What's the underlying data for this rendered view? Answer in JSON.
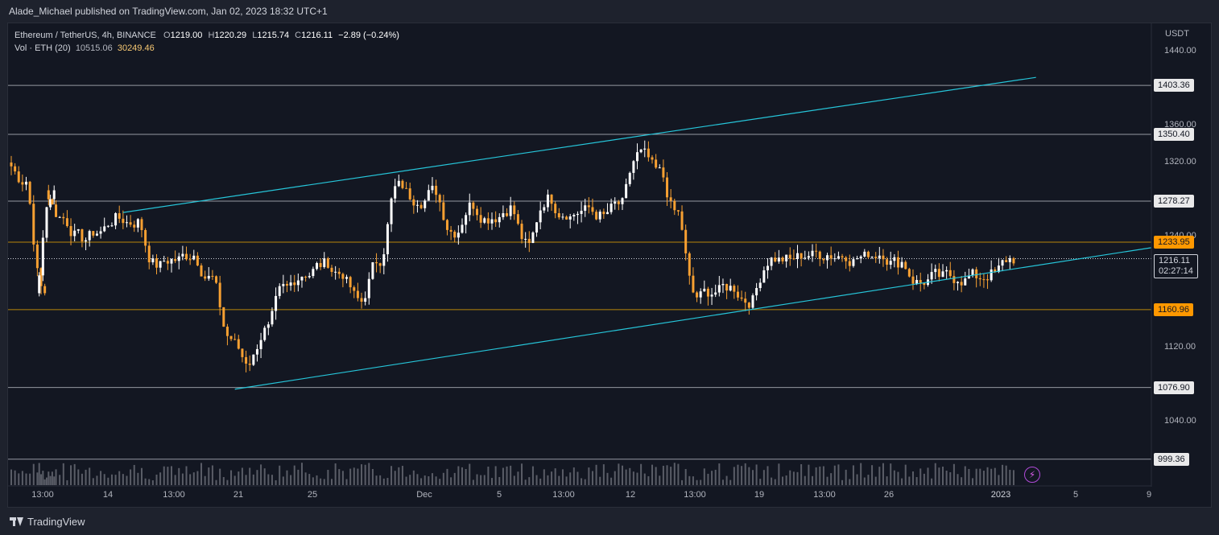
{
  "header": {
    "publisher": "Alade_Michael published on TradingView.com, Jan 02, 2023 18:32 UTC+1"
  },
  "legend": {
    "symbol": "Ethereum / TetherUS, 4h, BINANCE",
    "o_label": "O",
    "o": "1219.00",
    "h_label": "H",
    "h": "1220.29",
    "l_label": "L",
    "l": "1215.74",
    "c_label": "C",
    "c": "1216.11",
    "change": "−2.89 (−0.24%)",
    "vol_label": "Vol · ETH (20)",
    "vol_a": "10515.06",
    "vol_b": "30249.46"
  },
  "colors": {
    "background": "#131722",
    "up_candle": "#ffffff",
    "down_candle": "#f7a032",
    "trendline": "#26c6da",
    "level_line_white": "#9598a1",
    "level_line_orange": "#b8860b",
    "volume": "#9598a1"
  },
  "footer": {
    "brand": "TradingView"
  },
  "y_axis": {
    "unit": "USDT",
    "ticks": [
      "1440.00",
      "1360.00",
      "1320.00",
      "1240.00",
      "1120.00",
      "1040.00"
    ]
  },
  "x_axis": {
    "ticks": [
      "13:00",
      "14",
      "13:00",
      "21",
      "25",
      "Dec",
      "5",
      "13:00",
      "12",
      "13:00",
      "19",
      "13:00",
      "26",
      "2023",
      "5",
      "9"
    ]
  },
  "price_tags": {
    "current_price": "1216.11",
    "countdown": "02:27:14"
  },
  "chart_data": {
    "type": "candlestick",
    "symbol": "Ethereum / TetherUS",
    "interval": "4h",
    "exchange": "BINANCE",
    "ylim": [
      960,
      1470
    ],
    "horizontal_levels": [
      {
        "value": 1403.36,
        "label": "1403.36",
        "style": "white"
      },
      {
        "value": 1350.4,
        "label": "1350.40",
        "style": "white"
      },
      {
        "value": 1278.27,
        "label": "1278.27",
        "style": "white"
      },
      {
        "value": 1233.95,
        "label": "1233.95",
        "style": "orange"
      },
      {
        "value": 1160.96,
        "label": "1160.96",
        "style": "orange"
      },
      {
        "value": 1076.9,
        "label": "1076.90",
        "style": "white"
      },
      {
        "value": 999.36,
        "label": "999.36",
        "style": "white"
      }
    ],
    "trendlines": [
      {
        "name": "upper-channel",
        "from": {
          "date": "2022-11-16",
          "price": 1266
        },
        "to": {
          "date": "2023-01-04",
          "price": 1412
        }
      },
      {
        "name": "lower-channel",
        "from": {
          "date": "2022-11-22",
          "price": 1075
        },
        "to": {
          "date": "2023-01-07",
          "price": 1218
        }
      }
    ],
    "candles": [
      {
        "date": "2022-11-10",
        "close": 1300
      },
      {
        "date": "2022-11-11",
        "close": 1180
      },
      {
        "date": "2022-11-11",
        "close": 1290
      },
      {
        "date": "2022-11-12",
        "close": 1260
      },
      {
        "date": "2022-11-13",
        "close": 1240
      },
      {
        "date": "2022-11-14",
        "close": 1245
      },
      {
        "date": "2022-11-15",
        "close": 1260
      },
      {
        "date": "2022-11-16",
        "close": 1255
      },
      {
        "date": "2022-11-17",
        "close": 1210
      },
      {
        "date": "2022-11-18",
        "close": 1215
      },
      {
        "date": "2022-11-19",
        "close": 1220
      },
      {
        "date": "2022-11-20",
        "close": 1195
      },
      {
        "date": "2022-11-21",
        "close": 1130
      },
      {
        "date": "2022-11-22",
        "close": 1105
      },
      {
        "date": "2022-11-23",
        "close": 1140
      },
      {
        "date": "2022-11-24",
        "close": 1185
      },
      {
        "date": "2022-11-25",
        "close": 1200
      },
      {
        "date": "2022-11-26",
        "close": 1210
      },
      {
        "date": "2022-11-27",
        "close": 1200
      },
      {
        "date": "2022-11-28",
        "close": 1170
      },
      {
        "date": "2022-11-29",
        "close": 1215
      },
      {
        "date": "2022-11-30",
        "close": 1295
      },
      {
        "date": "2022-12-01",
        "close": 1280
      },
      {
        "date": "2022-12-02",
        "close": 1290
      },
      {
        "date": "2022-12-03",
        "close": 1245
      },
      {
        "date": "2022-12-04",
        "close": 1275
      },
      {
        "date": "2022-12-05",
        "close": 1260
      },
      {
        "date": "2022-12-06",
        "close": 1270
      },
      {
        "date": "2022-12-07",
        "close": 1230
      },
      {
        "date": "2022-12-08",
        "close": 1280
      },
      {
        "date": "2022-12-09",
        "close": 1265
      },
      {
        "date": "2022-12-10",
        "close": 1268
      },
      {
        "date": "2022-12-11",
        "close": 1262
      },
      {
        "date": "2022-12-12",
        "close": 1275
      },
      {
        "date": "2022-12-13",
        "close": 1330
      },
      {
        "date": "2022-12-14",
        "close": 1310
      },
      {
        "date": "2022-12-15",
        "close": 1265
      },
      {
        "date": "2022-12-16",
        "close": 1175
      },
      {
        "date": "2022-12-17",
        "close": 1180
      },
      {
        "date": "2022-12-18",
        "close": 1185
      },
      {
        "date": "2022-12-19",
        "close": 1170
      },
      {
        "date": "2022-12-20",
        "close": 1215
      },
      {
        "date": "2022-12-21",
        "close": 1215
      },
      {
        "date": "2022-12-22",
        "close": 1220
      },
      {
        "date": "2022-12-23",
        "close": 1220
      },
      {
        "date": "2022-12-24",
        "close": 1220
      },
      {
        "date": "2022-12-25",
        "close": 1218
      },
      {
        "date": "2022-12-26",
        "close": 1222
      },
      {
        "date": "2022-12-27",
        "close": 1212
      },
      {
        "date": "2022-12-28",
        "close": 1190
      },
      {
        "date": "2022-12-29",
        "close": 1198
      },
      {
        "date": "2022-12-30",
        "close": 1195
      },
      {
        "date": "2022-12-31",
        "close": 1198
      },
      {
        "date": "2023-01-01",
        "close": 1200
      },
      {
        "date": "2023-01-02",
        "close": 1216.11
      }
    ],
    "volume_ma_length": 20
  }
}
